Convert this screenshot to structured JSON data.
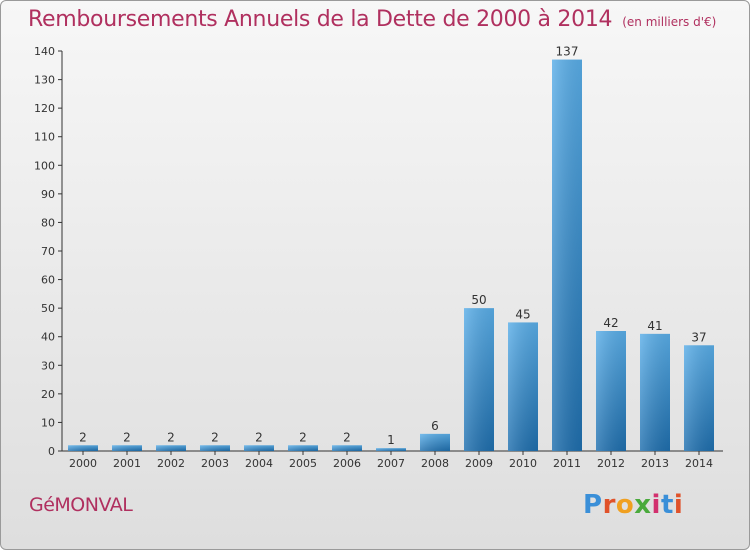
{
  "chart_data": {
    "type": "bar",
    "title": "Remboursements Annuels de la Dette de 2000 à 2014",
    "subtitle": "(en milliers d'€)",
    "categories": [
      "2000",
      "2001",
      "2002",
      "2003",
      "2004",
      "2005",
      "2006",
      "2007",
      "2008",
      "2009",
      "2010",
      "2011",
      "2012",
      "2013",
      "2014"
    ],
    "values": [
      2,
      2,
      2,
      2,
      2,
      2,
      2,
      1,
      6,
      50,
      45,
      137,
      42,
      41,
      37
    ],
    "ylim": [
      0,
      140
    ],
    "yticks": [
      0,
      10,
      20,
      30,
      40,
      50,
      60,
      70,
      80,
      90,
      100,
      110,
      120,
      130,
      140
    ],
    "grid": false,
    "legend": "none"
  },
  "footer": {
    "commune": "GéMONVAL",
    "logo_letters": [
      "P",
      "r",
      "o",
      "x",
      "i",
      "t",
      "i"
    ]
  },
  "colors": {
    "title": "#b0305f",
    "bar_light": "#5aaee8",
    "bar_dark": "#1f6fae",
    "logo": [
      "#3a8fd8",
      "#e0522a",
      "#f0a020",
      "#4aaa3c",
      "#d2306e",
      "#3a8fd8",
      "#e0522a"
    ]
  }
}
